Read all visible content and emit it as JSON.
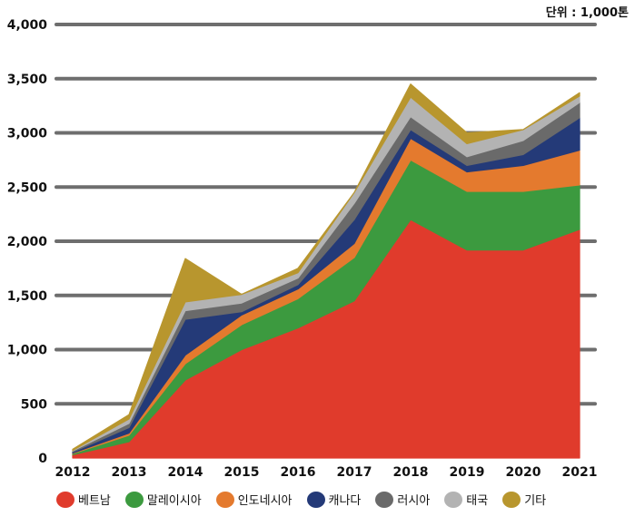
{
  "chart_data": {
    "type": "area",
    "stacked": true,
    "unit_label": "단위 : 1,000톤",
    "categories": [
      "2012",
      "2013",
      "2014",
      "2015",
      "2016",
      "2017",
      "2018",
      "2019",
      "2020",
      "2021"
    ],
    "ylim": [
      0,
      4000
    ],
    "yticks": [
      0,
      500,
      1000,
      1500,
      2000,
      2500,
      3000,
      3500,
      4000
    ],
    "ytick_labels": [
      "0",
      "500",
      "1,000",
      "1,500",
      "2,000",
      "2,500",
      "3,000",
      "3,500",
      "4,000"
    ],
    "grid": true,
    "legend_position": "bottom",
    "series": [
      {
        "name": "베트남",
        "color": "#e03b2c",
        "values": [
          30,
          150,
          720,
          1000,
          1200,
          1450,
          2200,
          1920,
          1920,
          2110
        ]
      },
      {
        "name": "말레이시아",
        "color": "#3c9a3f",
        "values": [
          10,
          60,
          150,
          230,
          270,
          400,
          550,
          540,
          540,
          410
        ]
      },
      {
        "name": "인도네시아",
        "color": "#e47a2e",
        "values": [
          5,
          20,
          80,
          90,
          90,
          130,
          200,
          180,
          240,
          320
        ]
      },
      {
        "name": "캐나다",
        "color": "#243a78",
        "values": [
          10,
          50,
          330,
          30,
          40,
          220,
          80,
          60,
          100,
          300
        ]
      },
      {
        "name": "러시아",
        "color": "#6a6a6a",
        "values": [
          10,
          40,
          80,
          80,
          60,
          150,
          120,
          80,
          130,
          140
        ]
      },
      {
        "name": "태국",
        "color": "#b3b3b3",
        "values": [
          5,
          40,
          80,
          80,
          50,
          100,
          180,
          120,
          100,
          60
        ]
      },
      {
        "name": "기타",
        "color": "#b8962e",
        "values": [
          10,
          40,
          400,
          0,
          40,
          0,
          120,
          100,
          0,
          30
        ]
      }
    ]
  }
}
